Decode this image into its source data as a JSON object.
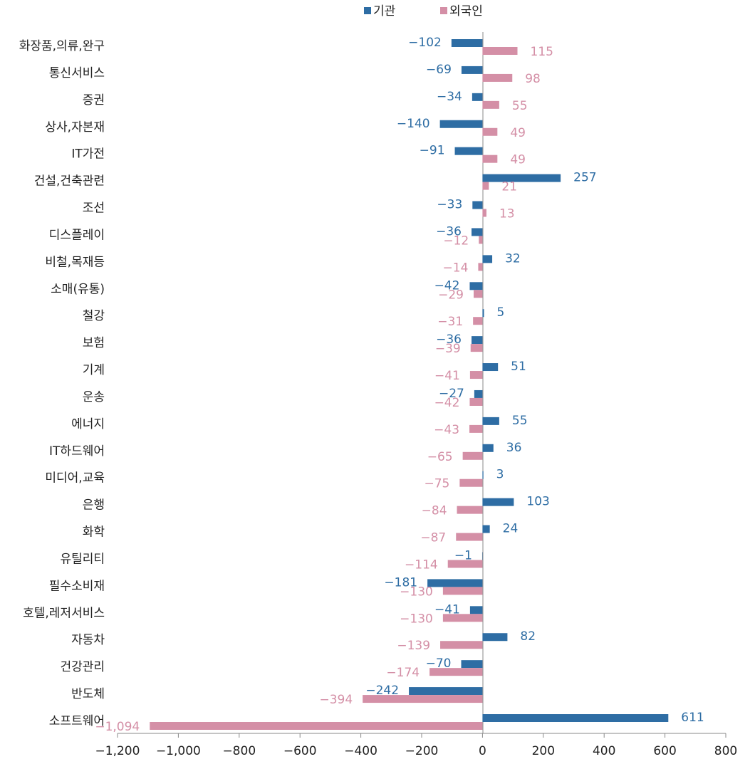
{
  "chart_data": {
    "type": "bar",
    "orientation": "horizontal",
    "categories": [
      "화장품,의류,완구",
      "통신서비스",
      "증권",
      "상사,자본재",
      "IT가전",
      "건설,건축관련",
      "조선",
      "디스플레이",
      "비철,목재등",
      "소매(유통)",
      "철강",
      "보험",
      "기계",
      "운송",
      "에너지",
      "IT하드웨어",
      "미디어,교육",
      "은행",
      "화학",
      "유틸리티",
      "필수소비재",
      "호텔,레저서비스",
      "자동차",
      "건강관리",
      "반도체",
      "소프트웨어"
    ],
    "series": [
      {
        "name": "기관",
        "color": "#2e6da4",
        "values": [
          -102,
          -69,
          -34,
          -140,
          -91,
          257,
          -33,
          -36,
          32,
          -42,
          5,
          -36,
          51,
          -27,
          55,
          36,
          3,
          103,
          24,
          -1,
          -181,
          -41,
          82,
          -70,
          -242,
          611
        ],
        "value_labels": [
          "−102",
          "−69",
          "−34",
          "−140",
          "−91",
          "257",
          "−33",
          "−36",
          "32",
          "−42",
          "5",
          "−36",
          "51",
          "−27",
          "55",
          "36",
          "3",
          "103",
          "24",
          "−1",
          "−181",
          "−41",
          "82",
          "−70",
          "−242",
          "611"
        ]
      },
      {
        "name": "외국인",
        "color": "#d48fa6",
        "values": [
          115,
          98,
          55,
          49,
          49,
          21,
          13,
          -12,
          -14,
          -29,
          -31,
          -39,
          -41,
          -42,
          -43,
          -65,
          -75,
          -84,
          -87,
          -114,
          -130,
          -130,
          -139,
          -174,
          -394,
          -1094
        ],
        "value_labels": [
          "115",
          "98",
          "55",
          "49",
          "49",
          "21",
          "13",
          "−12",
          "−14",
          "−29",
          "−31",
          "−39",
          "−41",
          "−42",
          "−43",
          "−65",
          "−75",
          "−84",
          "−87",
          "−114",
          "−130",
          "−130",
          "−139",
          "−174",
          "−394",
          "−1,094"
        ]
      }
    ],
    "xlim": [
      -1200,
      800
    ],
    "xticks": [
      {
        "value": -1200,
        "label": "−1,200"
      },
      {
        "value": -1000,
        "label": "−1,000"
      },
      {
        "value": -800,
        "label": "−800"
      },
      {
        "value": -600,
        "label": "−600"
      },
      {
        "value": -400,
        "label": "−400"
      },
      {
        "value": -200,
        "label": "−200"
      },
      0,
      200,
      400,
      600,
      800
    ],
    "grid": false,
    "legend": "top"
  }
}
